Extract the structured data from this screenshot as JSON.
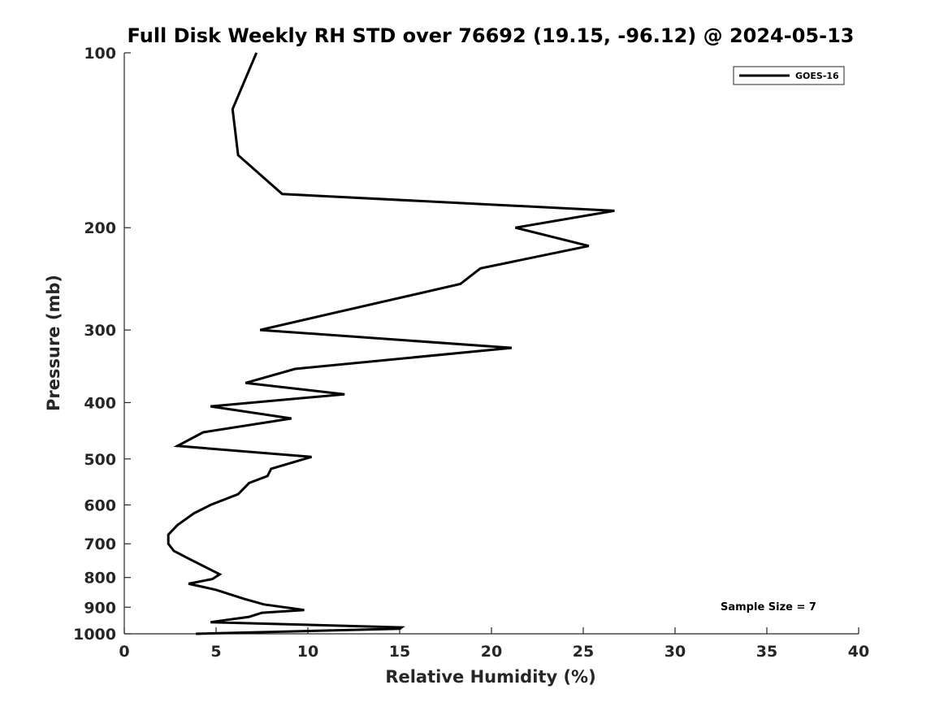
{
  "chart_data": {
    "type": "line",
    "title": "Full Disk Weekly RH STD over 76692 (19.15, -96.12) @ 2024-05-13",
    "xlabel": "Relative Humidity (%)",
    "ylabel": "Pressure (mb)",
    "xlim": [
      0,
      40
    ],
    "ylim": [
      100,
      1000
    ],
    "y_scale": "log",
    "y_reversed": true,
    "grid": false,
    "legend_placement": "top-right",
    "x_ticks": [
      0,
      5,
      10,
      15,
      20,
      25,
      30,
      35,
      40
    ],
    "x_tick_labels": [
      "0",
      "5",
      "10",
      "15",
      "20",
      "25",
      "30",
      "35",
      "40"
    ],
    "y_ticks": [
      100,
      200,
      300,
      400,
      500,
      600,
      700,
      800,
      900,
      1000
    ],
    "y_tick_labels": [
      "100",
      "200",
      "300",
      "400",
      "500",
      "600",
      "700",
      "800",
      "900",
      "1000"
    ],
    "series": [
      {
        "name": "GOES-16",
        "color": "#000000",
        "points": [
          [
            7.2,
            100
          ],
          [
            5.9,
            125
          ],
          [
            6.2,
            150
          ],
          [
            8.6,
            175
          ],
          [
            26.7,
            187
          ],
          [
            21.3,
            200
          ],
          [
            25.3,
            215
          ],
          [
            19.4,
            235
          ],
          [
            18.3,
            250
          ],
          [
            11.5,
            280
          ],
          [
            7.4,
            300
          ],
          [
            21.1,
            322
          ],
          [
            9.3,
            350
          ],
          [
            6.6,
            370
          ],
          [
            12.0,
            387
          ],
          [
            4.7,
            406
          ],
          [
            9.1,
            426
          ],
          [
            4.3,
            450
          ],
          [
            2.9,
            475
          ],
          [
            10.2,
            496
          ],
          [
            8.0,
            520
          ],
          [
            7.8,
            535
          ],
          [
            6.8,
            550
          ],
          [
            6.2,
            575
          ],
          [
            4.7,
            600
          ],
          [
            3.8,
            620
          ],
          [
            2.9,
            650
          ],
          [
            2.4,
            675
          ],
          [
            2.4,
            700
          ],
          [
            2.7,
            720
          ],
          [
            3.6,
            745
          ],
          [
            4.5,
            770
          ],
          [
            5.2,
            790
          ],
          [
            4.8,
            805
          ],
          [
            3.5,
            820
          ],
          [
            5.0,
            840
          ],
          [
            6.5,
            870
          ],
          [
            7.6,
            890
          ],
          [
            9.8,
            910
          ],
          [
            7.5,
            920
          ],
          [
            6.8,
            935
          ],
          [
            4.7,
            955
          ],
          [
            15.1,
            975
          ],
          [
            15.0,
            980
          ],
          [
            3.9,
            1000
          ]
        ]
      }
    ],
    "legend": [
      {
        "label": "GOES-16",
        "color": "#000000"
      }
    ],
    "annotation": "Sample Size = 7"
  }
}
